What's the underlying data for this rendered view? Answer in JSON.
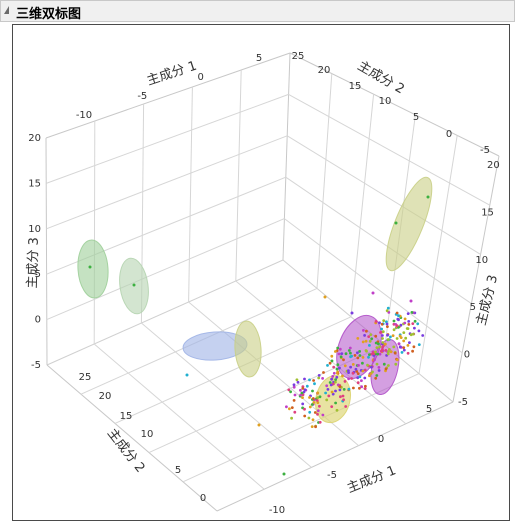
{
  "window": {
    "title": "三维双标图"
  },
  "chart_data": {
    "type": "scatter",
    "title": "",
    "axes": {
      "pc1": {
        "label": "主成分 1",
        "ticks": [
          "-10",
          "-5",
          "0",
          "5"
        ],
        "ticks_front": [
          "-10",
          "-5",
          "0",
          "5"
        ]
      },
      "pc2": {
        "label": "主成分 2",
        "ticks": [
          "25",
          "20",
          "15",
          "10",
          "5",
          "0"
        ],
        "ticks_front": [
          "25",
          "20",
          "15",
          "10",
          "5",
          "0"
        ]
      },
      "pc3": {
        "label": "主成分 3",
        "ticks": [
          "20",
          "15",
          "10",
          "5",
          "0",
          "-5"
        ],
        "ticks_right": [
          "20",
          "15",
          "10",
          "5",
          "0",
          "-5"
        ]
      }
    },
    "cluster_colors": [
      "#c03fc8",
      "#e0a020",
      "#20b0d0",
      "#3cb040",
      "#7a3ce0",
      "#e04080",
      "#a0c030",
      "#d06020"
    ],
    "ellipse_colors": {
      "green": "#9fcf9a",
      "sage": "#b5d4b0",
      "blue": "#9fb3e6",
      "olive": "#c9cf86",
      "magenta": "#b050c8",
      "yellow": "#dcd470"
    }
  }
}
